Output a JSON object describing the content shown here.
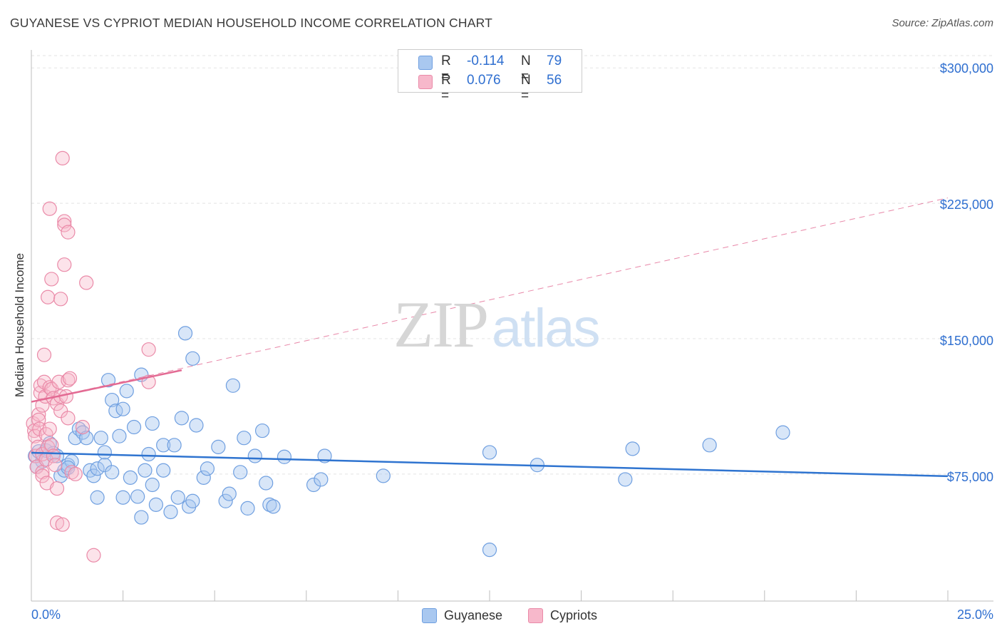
{
  "header": {
    "title": "GUYANESE VS CYPRIOT MEDIAN HOUSEHOLD INCOME CORRELATION CHART",
    "source": "Source: ZipAtlas.com"
  },
  "watermark": {
    "zip": "ZIP",
    "atlas": "atlas"
  },
  "legend_top": {
    "rows": [
      {
        "r_label": "R =",
        "r_value": "-0.114",
        "n_label": "N =",
        "n_value": "79"
      },
      {
        "r_label": "R =",
        "r_value": "0.076",
        "n_label": "N =",
        "n_value": "56"
      }
    ]
  },
  "legend_bottom": {
    "items": [
      {
        "label": "Guyanese"
      },
      {
        "label": "Cypriots"
      }
    ]
  },
  "colors": {
    "guyanese_fill": "#a9c8f0",
    "guyanese_stroke": "#6f9fe0",
    "guyanese_line": "#2f74d0",
    "cypriots_fill": "#f7b8cb",
    "cypriots_stroke": "#ea8aa8",
    "cypriots_line": "#e36a93",
    "tick_label": "#2f6fd0",
    "grid": "#e3e3e3"
  },
  "chart_data": {
    "type": "scatter",
    "title": "GUYANESE VS CYPRIOT MEDIAN HOUSEHOLD INCOME CORRELATION CHART",
    "xlabel": "",
    "ylabel": "Median Household Income",
    "xlim": [
      0,
      25
    ],
    "ylim": [
      5000,
      310000
    ],
    "x_tick_labels": [
      "0.0%",
      "25.0%"
    ],
    "y_ticks": [
      75000,
      150000,
      225000,
      300000
    ],
    "y_tick_labels": [
      "$75,000",
      "$150,000",
      "$225,000",
      "$300,000"
    ],
    "grid": "horizontal dashed",
    "legend": "top-center",
    "series": [
      {
        "name": "Guyanese",
        "r": -0.114,
        "n": 79,
        "trend": {
          "x": [
            0,
            25
          ],
          "y": [
            86800,
            73800
          ],
          "dashed_extension": false
        },
        "points": [
          [
            0.1,
            85000
          ],
          [
            0.2,
            87500
          ],
          [
            0.3,
            82000
          ],
          [
            0.4,
            88000
          ],
          [
            0.5,
            92000
          ],
          [
            0.6,
            86500
          ],
          [
            0.7,
            85000
          ],
          [
            0.8,
            74000
          ],
          [
            0.9,
            77000
          ],
          [
            1.0,
            80000
          ],
          [
            1.1,
            82000
          ],
          [
            1.0,
            78500
          ],
          [
            1.2,
            95000
          ],
          [
            1.3,
            100000
          ],
          [
            1.4,
            98000
          ],
          [
            1.5,
            95000
          ],
          [
            1.6,
            77000
          ],
          [
            1.7,
            74000
          ],
          [
            1.8,
            78000
          ],
          [
            1.8,
            62000
          ],
          [
            1.9,
            95000
          ],
          [
            2.0,
            87000
          ],
          [
            2.0,
            80000
          ],
          [
            2.1,
            127000
          ],
          [
            2.2,
            76000
          ],
          [
            2.2,
            116000
          ],
          [
            2.3,
            110000
          ],
          [
            2.4,
            96000
          ],
          [
            2.5,
            111000
          ],
          [
            2.5,
            62000
          ],
          [
            2.6,
            121000
          ],
          [
            2.7,
            73000
          ],
          [
            2.8,
            101000
          ],
          [
            2.9,
            62500
          ],
          [
            3.0,
            130000
          ],
          [
            3.0,
            51000
          ],
          [
            3.1,
            77000
          ],
          [
            3.2,
            86000
          ],
          [
            3.3,
            103000
          ],
          [
            3.3,
            69000
          ],
          [
            3.4,
            58000
          ],
          [
            3.6,
            91000
          ],
          [
            3.6,
            77000
          ],
          [
            3.8,
            54000
          ],
          [
            3.9,
            91000
          ],
          [
            4.0,
            62000
          ],
          [
            4.1,
            106000
          ],
          [
            4.2,
            153000
          ],
          [
            4.3,
            57000
          ],
          [
            4.4,
            139000
          ],
          [
            4.4,
            60000
          ],
          [
            4.5,
            102000
          ],
          [
            4.7,
            73000
          ],
          [
            4.8,
            78000
          ],
          [
            5.1,
            90000
          ],
          [
            5.3,
            60000
          ],
          [
            5.4,
            64000
          ],
          [
            5.5,
            124000
          ],
          [
            5.7,
            76000
          ],
          [
            5.8,
            95000
          ],
          [
            5.9,
            56000
          ],
          [
            6.1,
            85000
          ],
          [
            6.3,
            99000
          ],
          [
            6.4,
            70000
          ],
          [
            6.5,
            58000
          ],
          [
            6.6,
            57000
          ],
          [
            6.9,
            84500
          ],
          [
            7.7,
            69000
          ],
          [
            7.9,
            72000
          ],
          [
            8.0,
            85000
          ],
          [
            9.6,
            74000
          ],
          [
            12.5,
            33000
          ],
          [
            12.5,
            87000
          ],
          [
            13.8,
            80000
          ],
          [
            16.2,
            72000
          ],
          [
            16.4,
            89000
          ],
          [
            18.5,
            91000
          ],
          [
            20.5,
            98000
          ],
          [
            0.15,
            79000
          ]
        ]
      },
      {
        "name": "Cypriots",
        "r": 0.076,
        "n": 56,
        "trend": {
          "x": [
            0,
            4.1
          ],
          "y": [
            115000,
            132500
          ],
          "dashed_extension": true,
          "dashed_to": [
            25,
            228000
          ]
        },
        "points": [
          [
            0.05,
            103000
          ],
          [
            0.08,
            99000
          ],
          [
            0.1,
            96000
          ],
          [
            0.12,
            85000
          ],
          [
            0.15,
            79000
          ],
          [
            0.18,
            90000
          ],
          [
            0.2,
            108000
          ],
          [
            0.2,
            105000
          ],
          [
            0.22,
            100000
          ],
          [
            0.25,
            120000
          ],
          [
            0.25,
            124000
          ],
          [
            0.3,
            76000
          ],
          [
            0.3,
            74000
          ],
          [
            0.3,
            113000
          ],
          [
            0.3,
            86000
          ],
          [
            0.35,
            126000
          ],
          [
            0.35,
            141000
          ],
          [
            0.38,
            118000
          ],
          [
            0.4,
            97000
          ],
          [
            0.4,
            83000
          ],
          [
            0.42,
            70000
          ],
          [
            0.45,
            90000
          ],
          [
            0.45,
            173000
          ],
          [
            0.5,
            123000
          ],
          [
            0.5,
            100000
          ],
          [
            0.5,
            222000
          ],
          [
            0.55,
            183000
          ],
          [
            0.55,
            122000
          ],
          [
            0.55,
            91000
          ],
          [
            0.6,
            117000
          ],
          [
            0.6,
            85000
          ],
          [
            0.65,
            80000
          ],
          [
            0.7,
            114000
          ],
          [
            0.7,
            48000
          ],
          [
            0.7,
            67000
          ],
          [
            0.75,
            126000
          ],
          [
            0.8,
            172000
          ],
          [
            0.8,
            118000
          ],
          [
            0.8,
            110000
          ],
          [
            0.85,
            250000
          ],
          [
            0.85,
            47000
          ],
          [
            0.9,
            215000
          ],
          [
            0.9,
            191000
          ],
          [
            0.9,
            213000
          ],
          [
            0.95,
            118000
          ],
          [
            1.0,
            209000
          ],
          [
            1.0,
            127000
          ],
          [
            1.0,
            106000
          ],
          [
            1.05,
            128000
          ],
          [
            1.1,
            76000
          ],
          [
            1.2,
            75000
          ],
          [
            1.4,
            101000
          ],
          [
            1.5,
            181000
          ],
          [
            1.7,
            30000
          ],
          [
            3.2,
            144000
          ],
          [
            3.2,
            126000
          ]
        ]
      }
    ]
  }
}
